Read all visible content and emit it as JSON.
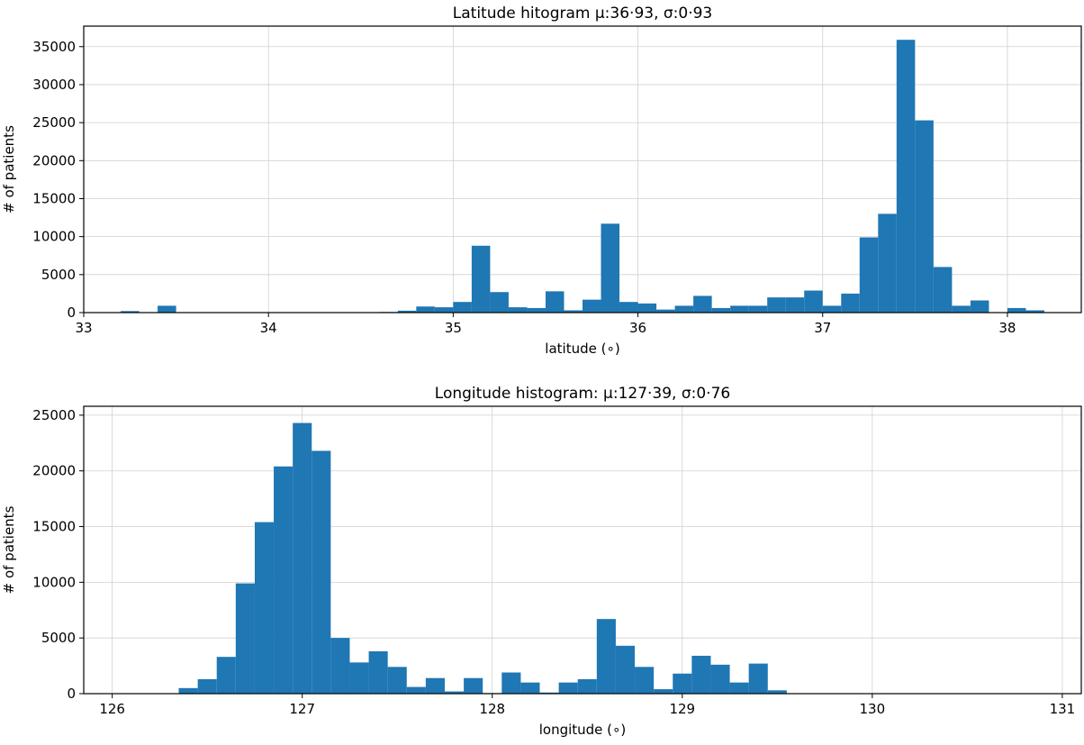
{
  "chart_data": [
    {
      "type": "bar",
      "subtype": "histogram",
      "title": "Latitude hitogram μ:36·93, σ:0·93",
      "xlabel": "latitude (∘)",
      "ylabel": "# of patients",
      "xlim": [
        33.0,
        38.4
      ],
      "ylim": [
        0,
        37700
      ],
      "grid": true,
      "bin_width": 0.1,
      "x_ticks": [
        33,
        34,
        35,
        36,
        37,
        38
      ],
      "x_tick_labels": [
        "33",
        "34",
        "35",
        "36",
        "37",
        "38"
      ],
      "y_ticks": [
        0,
        5000,
        10000,
        15000,
        20000,
        25000,
        30000,
        35000
      ],
      "y_tick_labels": [
        "0",
        "5000",
        "10000",
        "15000",
        "20000",
        "25000",
        "30000",
        "35000"
      ],
      "bins": [
        {
          "x": 33.25,
          "value": 200
        },
        {
          "x": 33.35,
          "value": 20
        },
        {
          "x": 33.45,
          "value": 900
        },
        {
          "x": 34.65,
          "value": 80
        },
        {
          "x": 34.75,
          "value": 250
        },
        {
          "x": 34.85,
          "value": 800
        },
        {
          "x": 34.95,
          "value": 700
        },
        {
          "x": 35.05,
          "value": 1400
        },
        {
          "x": 35.15,
          "value": 8800
        },
        {
          "x": 35.25,
          "value": 2700
        },
        {
          "x": 35.35,
          "value": 700
        },
        {
          "x": 35.45,
          "value": 600
        },
        {
          "x": 35.55,
          "value": 2800
        },
        {
          "x": 35.65,
          "value": 300
        },
        {
          "x": 35.75,
          "value": 1700
        },
        {
          "x": 35.85,
          "value": 11700
        },
        {
          "x": 35.95,
          "value": 1400
        },
        {
          "x": 36.05,
          "value": 1200
        },
        {
          "x": 36.15,
          "value": 400
        },
        {
          "x": 36.25,
          "value": 900
        },
        {
          "x": 36.35,
          "value": 2200
        },
        {
          "x": 36.45,
          "value": 600
        },
        {
          "x": 36.55,
          "value": 900
        },
        {
          "x": 36.65,
          "value": 900
        },
        {
          "x": 36.75,
          "value": 2000
        },
        {
          "x": 36.85,
          "value": 2000
        },
        {
          "x": 36.95,
          "value": 2900
        },
        {
          "x": 37.05,
          "value": 900
        },
        {
          "x": 37.15,
          "value": 2500
        },
        {
          "x": 37.25,
          "value": 9900
        },
        {
          "x": 37.35,
          "value": 13000
        },
        {
          "x": 37.45,
          "value": 35900
        },
        {
          "x": 37.55,
          "value": 25300
        },
        {
          "x": 37.65,
          "value": 6000
        },
        {
          "x": 37.75,
          "value": 900
        },
        {
          "x": 37.85,
          "value": 1600
        },
        {
          "x": 38.05,
          "value": 600
        },
        {
          "x": 38.15,
          "value": 300
        }
      ]
    },
    {
      "type": "bar",
      "subtype": "histogram",
      "title": "Longitude histogram: μ:127·39, σ:0·76",
      "xlabel": "longitude (∘)",
      "ylabel": "# of patients",
      "xlim": [
        125.85,
        131.1
      ],
      "ylim": [
        0,
        25800
      ],
      "grid": true,
      "bin_width": 0.1,
      "x_ticks": [
        126,
        127,
        128,
        129,
        130,
        131
      ],
      "x_tick_labels": [
        "126",
        "127",
        "128",
        "129",
        "130",
        "131"
      ],
      "y_ticks": [
        0,
        5000,
        10000,
        15000,
        20000,
        25000
      ],
      "y_tick_labels": [
        "0",
        "5000",
        "10000",
        "15000",
        "20000",
        "25000"
      ],
      "bins": [
        {
          "x": 126.4,
          "value": 500
        },
        {
          "x": 126.5,
          "value": 1300
        },
        {
          "x": 126.6,
          "value": 3300
        },
        {
          "x": 126.7,
          "value": 9900
        },
        {
          "x": 126.8,
          "value": 15400
        },
        {
          "x": 126.9,
          "value": 20400
        },
        {
          "x": 127.0,
          "value": 24300
        },
        {
          "x": 127.1,
          "value": 21800
        },
        {
          "x": 127.2,
          "value": 5000
        },
        {
          "x": 127.3,
          "value": 2800
        },
        {
          "x": 127.4,
          "value": 3800
        },
        {
          "x": 127.5,
          "value": 2400
        },
        {
          "x": 127.6,
          "value": 600
        },
        {
          "x": 127.7,
          "value": 1400
        },
        {
          "x": 127.8,
          "value": 200
        },
        {
          "x": 127.9,
          "value": 1400
        },
        {
          "x": 128.0,
          "value": 50
        },
        {
          "x": 128.1,
          "value": 1900
        },
        {
          "x": 128.2,
          "value": 1000
        },
        {
          "x": 128.3,
          "value": 100
        },
        {
          "x": 128.4,
          "value": 1000
        },
        {
          "x": 128.5,
          "value": 1300
        },
        {
          "x": 128.6,
          "value": 6700
        },
        {
          "x": 128.7,
          "value": 4300
        },
        {
          "x": 128.8,
          "value": 2400
        },
        {
          "x": 128.9,
          "value": 400
        },
        {
          "x": 129.0,
          "value": 1800
        },
        {
          "x": 129.1,
          "value": 3400
        },
        {
          "x": 129.2,
          "value": 2600
        },
        {
          "x": 129.3,
          "value": 1000
        },
        {
          "x": 129.4,
          "value": 2700
        },
        {
          "x": 129.5,
          "value": 300
        }
      ]
    }
  ],
  "colors": {
    "bar": "#1f77b4",
    "grid": "#d0d0d0",
    "axis": "#000000"
  }
}
